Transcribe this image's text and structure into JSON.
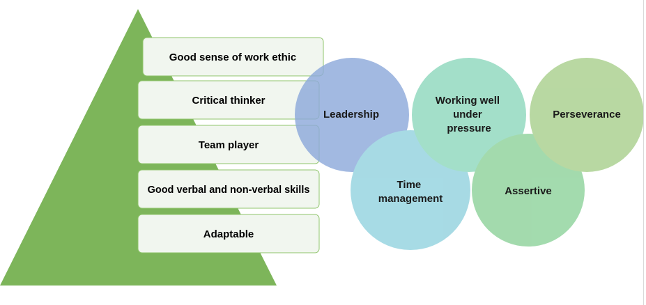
{
  "colors": {
    "pyramid": "#7db55a",
    "box_fill": "#f1f6ef",
    "box_stroke": "#8fc46b",
    "leadership": "#8eaadb",
    "time_management": "#94d3df",
    "working_well": "#90d8be",
    "assertive": "#8fd39c",
    "perseverance": "#a9d08e"
  },
  "pyramid": {
    "items": [
      "Good sense of work ethic",
      "Critical thinker",
      "Team player",
      "Good verbal and non-verbal skills",
      "Adaptable"
    ]
  },
  "circles": {
    "leadership": [
      "Leadership"
    ],
    "time_management": [
      "Time",
      "management"
    ],
    "working_well": [
      "Working well",
      "under",
      "pressure"
    ],
    "assertive": [
      "Assertive"
    ],
    "perseverance": [
      "Perseverance"
    ]
  }
}
